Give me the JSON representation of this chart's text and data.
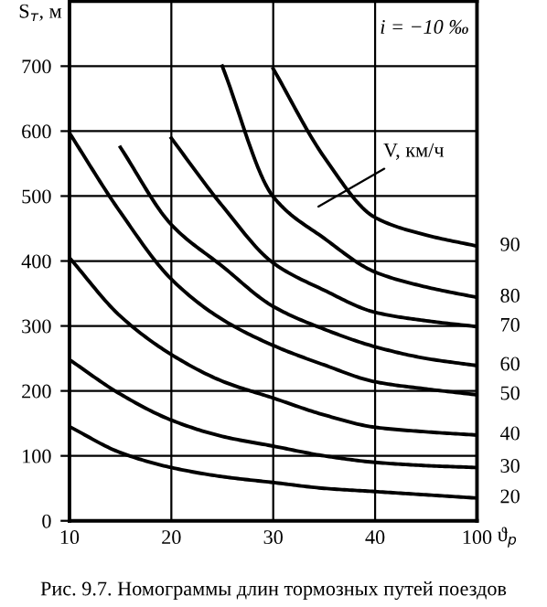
{
  "chart_data": {
    "type": "line",
    "xlabel": "ϑ$_{р}$",
    "ylabel": "S$_{т}$, м",
    "categories": [
      "10",
      null,
      "20",
      null,
      "30",
      null,
      "40",
      null,
      "100"
    ],
    "series": [
      {
        "name": "20",
        "color": "#000000",
        "values": [
          145,
          105,
          82,
          68,
          59,
          50,
          45,
          40,
          35
        ]
      },
      {
        "name": "30",
        "color": "#000000",
        "values": [
          248,
          195,
          155,
          130,
          115,
          100,
          90,
          85,
          82
        ]
      },
      {
        "name": "40",
        "color": "#000000",
        "values": [
          405,
          315,
          256,
          215,
          189,
          163,
          144,
          137,
          132
        ]
      },
      {
        "name": "50",
        "color": "#000000",
        "values": [
          597,
          475,
          372,
          310,
          270,
          240,
          214,
          203,
          194
        ]
      },
      {
        "name": "60",
        "color": "#000000",
        "values": [
          null,
          575,
          456,
          392,
          330,
          295,
          268,
          250,
          239
        ]
      },
      {
        "name": "70",
        "color": "#000000",
        "values": [
          null,
          null,
          589,
          485,
          397,
          355,
          321,
          308,
          299
        ]
      },
      {
        "name": "80",
        "color": "#000000",
        "values": [
          null,
          null,
          null,
          700,
          499,
          435,
          383,
          360,
          344
        ]
      },
      {
        "name": "90",
        "color": "#000000",
        "values": [
          null,
          null,
          null,
          null,
          696,
          560,
          467,
          440,
          423
        ]
      }
    ],
    "ylim": [
      0,
      800
    ],
    "yticks": [
      0,
      100,
      200,
      300,
      400,
      500,
      600,
      700
    ],
    "grid": true,
    "legend": false,
    "marker": "none",
    "line_style": "solid",
    "annotations": [
      "i = −10 ‰",
      "V, км/ч",
      "Рис. 9.7. Номограммы длин тормозных путей поездов"
    ]
  }
}
